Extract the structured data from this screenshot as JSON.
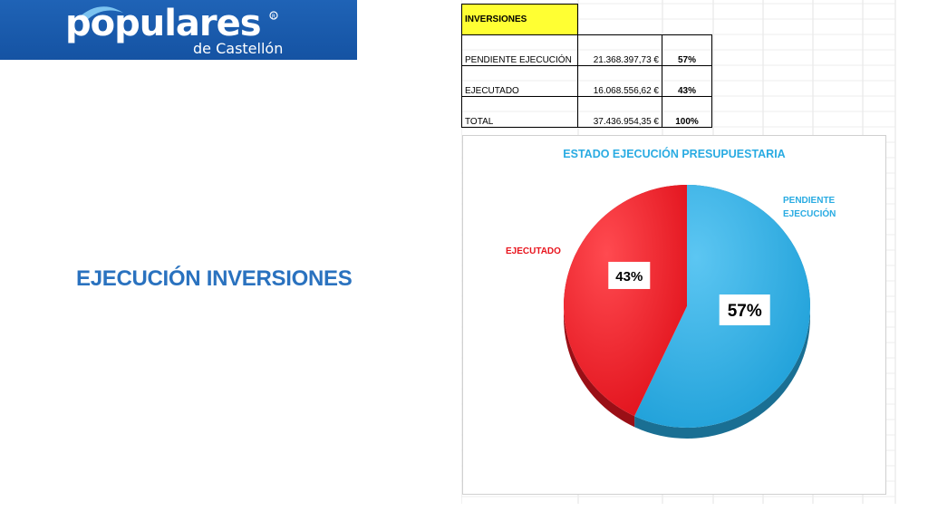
{
  "logo": {
    "main": "populares",
    "sub": "de Castellón"
  },
  "slide_title": "EJECUCIÓN INVERSIONES",
  "table": {
    "header": "INVERSIONES",
    "rows": [
      {
        "label": "PENDIENTE EJECUCIÓN",
        "amount": "21.368.397,73 €",
        "pct": "57%"
      },
      {
        "label": "EJECUTADO",
        "amount": "16.068.556,62 €",
        "pct": "43%"
      },
      {
        "label": "TOTAL",
        "amount": "37.436.954,35 €",
        "pct": "100%"
      }
    ]
  },
  "chart_data": {
    "type": "pie",
    "title": "ESTADO EJECUCIÓN PRESUPUESTARIA",
    "slices": [
      {
        "name": "PENDIENTE EJECUCIÓN",
        "label_lines": [
          "PENDIENTE",
          "EJECUCIÓN"
        ],
        "value": 57,
        "value_label": "57%",
        "color": "#29abe2",
        "shade": "#1a6f93",
        "label_color": "#29abe2"
      },
      {
        "name": "EJECUTADO",
        "label_lines": [
          "EJECUTADO"
        ],
        "value": 43,
        "value_label": "43%",
        "color": "#ee1c25",
        "shade": "#9a0f16",
        "label_color": "#e8141d"
      }
    ],
    "title_color": "#29abe2"
  }
}
